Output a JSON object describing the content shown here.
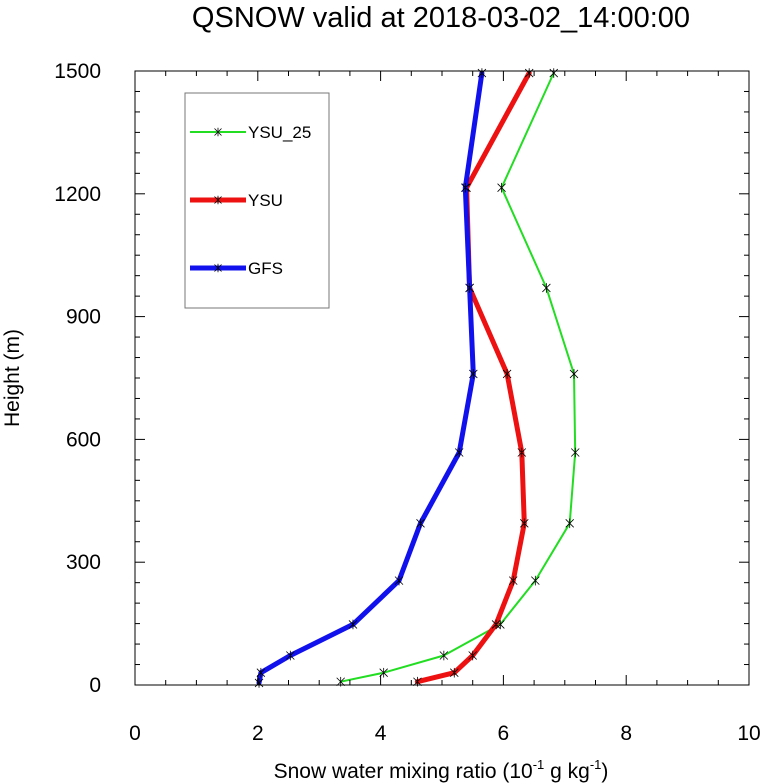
{
  "chart_data": {
    "type": "line",
    "title": "QSNOW valid at 2018-03-02_14:00:00",
    "xlabel": "Snow water mixing ratio (10",
    "xlabel_exp1": "-1",
    "xlabel_mid": " g kg",
    "xlabel_exp2": "-1",
    "xlabel_end": ")",
    "ylabel": "Height (m)",
    "xlim": [
      0,
      10
    ],
    "ylim": [
      0,
      1500
    ],
    "xticks": [
      "0",
      "2",
      "4",
      "6",
      "8",
      "10"
    ],
    "yticks": [
      "0",
      "300",
      "600",
      "900",
      "1200",
      "1500"
    ],
    "grid": false,
    "legend_position": "top-left",
    "series": [
      {
        "name": "YSU_25",
        "color": "#22dd22",
        "width": 2,
        "x": [
          3.35,
          4.05,
          5.03,
          5.95,
          6.52,
          7.08,
          7.17,
          7.15,
          6.7,
          5.97,
          6.82
        ],
        "y": [
          8,
          30,
          72,
          148,
          255,
          395,
          568,
          760,
          970,
          1215,
          1495
        ]
      },
      {
        "name": "YSU",
        "color": "#ee1111",
        "width": 5,
        "x": [
          4.6,
          5.2,
          5.5,
          5.88,
          6.16,
          6.34,
          6.3,
          6.06,
          5.45,
          5.4,
          6.42
        ],
        "y": [
          8,
          30,
          72,
          148,
          255,
          395,
          568,
          760,
          970,
          1215,
          1495
        ]
      },
      {
        "name": "GFS",
        "color": "#1111ee",
        "width": 5,
        "x": [
          2.02,
          2.05,
          2.53,
          3.55,
          4.3,
          4.65,
          5.28,
          5.51,
          5.45,
          5.38,
          5.65
        ],
        "y": [
          5,
          30,
          72,
          148,
          255,
          395,
          568,
          760,
          970,
          1215,
          1495
        ]
      }
    ]
  }
}
